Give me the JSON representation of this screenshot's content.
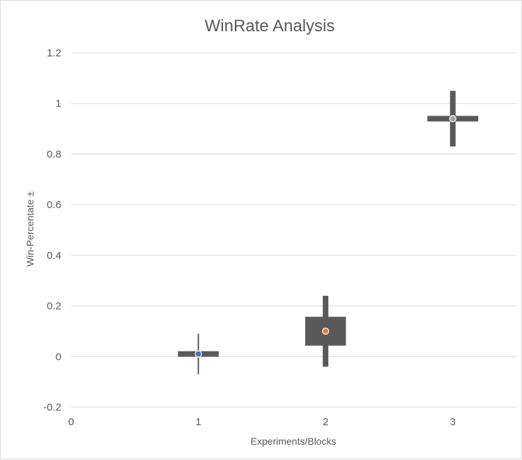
{
  "chart_data": {
    "type": "scatter",
    "title": "WinRate Analysis",
    "xlabel": "Experiments/Blocks",
    "ylabel": "Win-Percentate ±",
    "xlim": [
      0,
      3.5
    ],
    "ylim": [
      -0.2,
      1.2
    ],
    "xticks": [
      "0",
      "1",
      "2",
      "3"
    ],
    "yticks": [
      "-0.2",
      "0",
      "0.2",
      "0.4",
      "0.6",
      "0.8",
      "1",
      "1.2"
    ],
    "grid": true,
    "points": [
      {
        "x": 1,
        "y": 0.01,
        "y_err_low": -0.07,
        "y_err_high": 0.09,
        "x_err_low": 0.84,
        "x_err_high": 1.16,
        "color": "#4472c4"
      },
      {
        "x": 2,
        "y": 0.1,
        "y_err_low": -0.04,
        "y_err_high": 0.24,
        "x_err_low": 1.84,
        "x_err_high": 2.16,
        "color": "#ed7d31"
      },
      {
        "x": 3,
        "y": 0.94,
        "y_err_low": 0.83,
        "y_err_high": 1.05,
        "x_err_low": 2.8,
        "x_err_high": 3.2,
        "color": "#a5a5a5"
      }
    ],
    "box_color": "#595959"
  }
}
